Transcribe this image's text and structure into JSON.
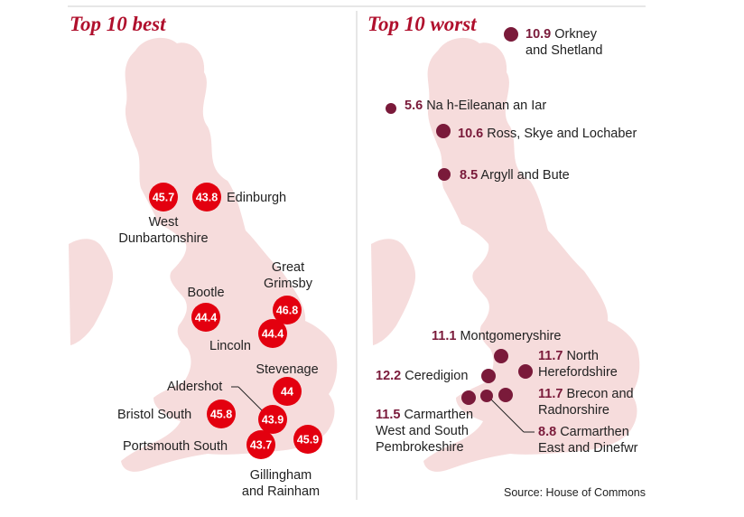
{
  "colors": {
    "best_marker": "#e3000f",
    "worst_marker": "#7a1a3a",
    "title": "#b0102d",
    "worst_value": "#7a1a3a",
    "land": "#f6dcdc",
    "rule": "#cfcfcf"
  },
  "best": {
    "title": "Top 10 best",
    "places": [
      {
        "id": "west-dunbartonshire",
        "value": "45.7",
        "name_lines": [
          "West",
          "Dunbartonshire"
        ]
      },
      {
        "id": "edinburgh",
        "value": "43.8",
        "name_lines": [
          "Edinburgh"
        ]
      },
      {
        "id": "great-grimsby",
        "value": "46.8",
        "name_lines": [
          "Great",
          "Grimsby"
        ]
      },
      {
        "id": "bootle",
        "value": "44.4",
        "name_lines": [
          "Bootle"
        ]
      },
      {
        "id": "lincoln",
        "value": "44.4",
        "name_lines": [
          "Lincoln"
        ]
      },
      {
        "id": "stevenage",
        "value": "44",
        "name_lines": [
          "Stevenage"
        ]
      },
      {
        "id": "aldershot",
        "value": "43.9",
        "name_lines": [
          "Aldershot"
        ]
      },
      {
        "id": "bristol-south",
        "value": "45.8",
        "name_lines": [
          "Bristol South"
        ]
      },
      {
        "id": "portsmouth-south",
        "value": "43.7",
        "name_lines": [
          "Portsmouth South"
        ]
      },
      {
        "id": "gillingham-and-rainham",
        "value": "45.9",
        "name_lines": [
          "Gillingham",
          "and Rainham"
        ]
      }
    ]
  },
  "worst": {
    "title": "Top 10 worst",
    "places": [
      {
        "id": "orkney-and-shetland",
        "value": "10.9",
        "name_lines": [
          "Orkney",
          "and Shetland"
        ]
      },
      {
        "id": "na-h-eileanan-an-iar",
        "value": "5.6",
        "name_lines": [
          "Na h-Eileanan an Iar"
        ]
      },
      {
        "id": "ross-skye-and-lochaber",
        "value": "10.6",
        "name_lines": [
          "Ross, Skye and Lochaber"
        ]
      },
      {
        "id": "argyll-and-bute",
        "value": "8.5",
        "name_lines": [
          "Argyll and Bute"
        ]
      },
      {
        "id": "montgomeryshire",
        "value": "11.1",
        "name_lines": [
          "Montgomeryshire"
        ]
      },
      {
        "id": "north-herefordshire",
        "value": "11.7",
        "name_lines": [
          "North",
          "Herefordshire"
        ]
      },
      {
        "id": "ceredigion",
        "value": "12.2",
        "name_lines": [
          "Ceredigion"
        ]
      },
      {
        "id": "brecon-and-radnorshire",
        "value": "11.7",
        "name_lines": [
          "Brecon and",
          "Radnorshire"
        ]
      },
      {
        "id": "carmarthen-west-and-south-pembrokeshire",
        "value": "11.5",
        "name_lines": [
          "Carmarthen",
          "West and South",
          "Pembrokeshire"
        ]
      },
      {
        "id": "carmarthen-east-and-dinefwr",
        "value": "8.8",
        "name_lines": [
          "Carmarthen",
          "East and Dinefwr"
        ]
      }
    ]
  },
  "source": "Source: House of Commons"
}
